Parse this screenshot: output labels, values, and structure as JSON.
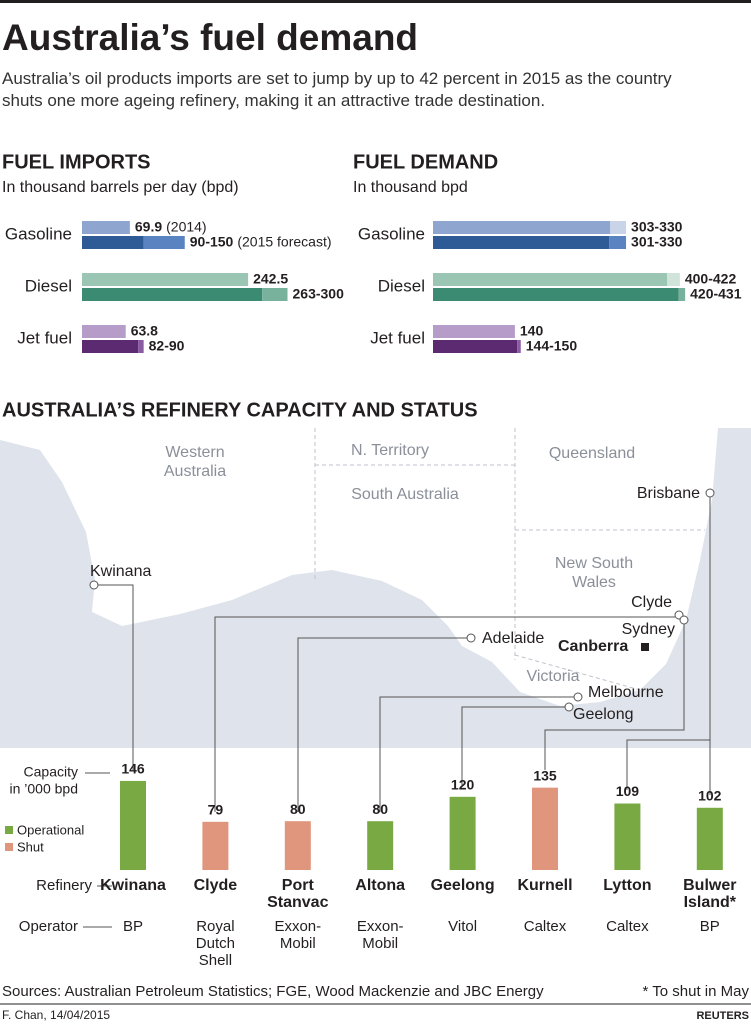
{
  "header": {
    "title": "Australia’s fuel demand",
    "subtitle": "Australia’s oil products imports are set to jump by up to 42 percent in 2015 as the country shuts one more ageing refinery, making it an attractive trade destination."
  },
  "chart_data": [
    {
      "type": "range-bar",
      "title": "FUEL IMPORTS",
      "subtitle": "In thousand barrels per day (bpd)",
      "categories": [
        "Gasoline",
        "Diesel",
        "Jet fuel"
      ],
      "series": [
        {
          "name": "(2014)",
          "values": [
            69.9,
            242.5,
            63.8
          ],
          "colors": [
            "#8da5cf",
            "#9cc6b4",
            "#b69cc8"
          ]
        },
        {
          "name": "(2015 forecast)",
          "low": [
            90,
            263,
            82
          ],
          "high": [
            150,
            300,
            90
          ],
          "value_labels": [
            "90-150",
            "263-300",
            "82-90"
          ],
          "colors": [
            "#2e5a95",
            "#3b8a72",
            "#5b2a70"
          ],
          "range_colors": [
            "#5a83c2",
            "#78b19c",
            "#8a5aa3"
          ]
        }
      ]
    },
    {
      "type": "range-bar",
      "title": "FUEL DEMAND",
      "subtitle": "In thousand bpd",
      "categories": [
        "Gasoline",
        "Diesel",
        "Jet fuel"
      ],
      "series": [
        {
          "low": [
            303,
            400,
            140
          ],
          "high": [
            330,
            422,
            null
          ],
          "value_labels": [
            "303-330",
            "400-422",
            "140"
          ],
          "colors": [
            "#8da5cf",
            "#9cc6b4",
            "#b69cc8"
          ],
          "range_colors": [
            "#c9d4e8",
            "#d0e4da",
            "#d9cbe2"
          ]
        },
        {
          "low": [
            301,
            420,
            144
          ],
          "high": [
            330,
            431,
            150
          ],
          "value_labels": [
            "301-330",
            "420-431",
            "144-150"
          ],
          "colors": [
            "#2e5a95",
            "#3b8a72",
            "#5b2a70"
          ],
          "range_colors": [
            "#5a83c2",
            "#78b19c",
            "#8a5aa3"
          ]
        }
      ]
    },
    {
      "type": "bar",
      "title": "AUSTRALIA’S REFINERY CAPACITY AND STATUS",
      "y_label": [
        "Capacity",
        "in ’000 bpd"
      ],
      "categories": [
        [
          "Kwinana"
        ],
        [
          "Clyde"
        ],
        [
          "Port",
          "Stanvac"
        ],
        [
          "Altona"
        ],
        [
          "Geelong"
        ],
        [
          "Kurnell"
        ],
        [
          "Lytton"
        ],
        [
          "Bulwer",
          "Island*"
        ]
      ],
      "values": [
        146,
        79,
        80,
        80,
        120,
        135,
        109,
        102
      ],
      "status": [
        0,
        1,
        1,
        0,
        0,
        1,
        0,
        0
      ],
      "legend": [
        {
          "name": "Operational",
          "color": "#78a942"
        },
        {
          "name": "Shut",
          "color": "#df967c"
        }
      ],
      "row_labels": {
        "refinery": "Refinery",
        "operator": "Operator"
      },
      "operators": [
        [
          "BP"
        ],
        [
          "Royal",
          "Dutch",
          "Shell"
        ],
        [
          "Exxon-",
          "Mobil"
        ],
        [
          "Exxon-",
          "Mobil"
        ],
        [
          "Vitol"
        ],
        [
          "Caltex"
        ],
        [
          "Caltex"
        ],
        [
          "BP"
        ]
      ]
    }
  ],
  "map": {
    "regions": [
      [
        "Western",
        "Australia"
      ],
      [
        "N. Territory"
      ],
      [
        "South Australia"
      ],
      [
        "Queensland"
      ],
      [
        "New South",
        "Wales"
      ],
      [
        "Victoria"
      ]
    ],
    "cities": [
      "Kwinana",
      "Brisbane",
      "Clyde",
      "Sydney",
      "Adelaide",
      "Canberra",
      "Melbourne",
      "Geelong"
    ]
  },
  "footer": {
    "sources": "Sources: Australian Petroleum Statistics; FGE, Wood Mackenzie and JBC Energy",
    "note": "* To shut in May",
    "credit": "F. Chan, 14/04/2015",
    "brand": "REUTERS"
  }
}
